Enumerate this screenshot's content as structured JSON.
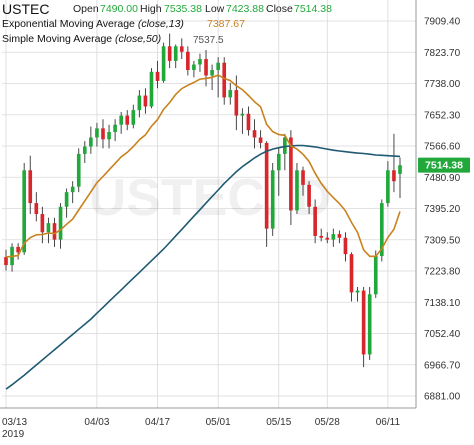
{
  "header": {
    "symbol": "USTEC",
    "open_label": "Open",
    "open_value": "7490.00",
    "high_label": "High",
    "high_value": "7535.38",
    "low_label": "Low",
    "low_value": "7423.88",
    "close_label": "Close",
    "close_value": "7514.38",
    "ema_label": "Exponential Moving Average",
    "ema_params": "(close,13)",
    "ema_value": "7387.67",
    "sma_label": "Simple Moving Average",
    "sma_params": "(close,50)"
  },
  "watermark": "USTEC, D",
  "last_price_label": "7514.38",
  "peak_label": "7537.5",
  "colors": {
    "up": "#22a83a",
    "down": "#d8262b",
    "ema": "#c8821e",
    "sma": "#1f5a73",
    "grid": "#d9d9d9",
    "price_tag": "#22a83a"
  },
  "chart_data": {
    "type": "candlestick",
    "ylim": [
      6830,
      7980
    ],
    "y_ticks": [
      "7909.40",
      "7823.70",
      "7738.00",
      "7652.30",
      "7566.60",
      "7480.90",
      "7395.20",
      "7309.50",
      "7223.80",
      "7138.10",
      "7052.40",
      "6966.70",
      "6881.00"
    ],
    "x_ticks": [
      {
        "label": "03/13",
        "sub": "2019",
        "index": 0
      },
      {
        "label": "04/03",
        "sub": "",
        "index": 15
      },
      {
        "label": "04/17",
        "sub": "",
        "index": 25
      },
      {
        "label": "05/01",
        "sub": "",
        "index": 35
      },
      {
        "label": "05/15",
        "sub": "",
        "index": 45
      },
      {
        "label": "05/28",
        "sub": "",
        "index": 53
      },
      {
        "label": "06/11",
        "sub": "",
        "index": 63
      }
    ],
    "candles": [
      {
        "o": 7262,
        "h": 7282,
        "l": 7225,
        "c": 7240
      },
      {
        "o": 7240,
        "h": 7300,
        "l": 7222,
        "c": 7290
      },
      {
        "o": 7290,
        "h": 7300,
        "l": 7255,
        "c": 7275
      },
      {
        "o": 7275,
        "h": 7520,
        "l": 7268,
        "c": 7500
      },
      {
        "o": 7500,
        "h": 7540,
        "l": 7380,
        "c": 7410
      },
      {
        "o": 7410,
        "h": 7440,
        "l": 7360,
        "c": 7380
      },
      {
        "o": 7380,
        "h": 7400,
        "l": 7300,
        "c": 7330
      },
      {
        "o": 7330,
        "h": 7370,
        "l": 7300,
        "c": 7355
      },
      {
        "o": 7355,
        "h": 7370,
        "l": 7290,
        "c": 7310
      },
      {
        "o": 7310,
        "h": 7410,
        "l": 7285,
        "c": 7400
      },
      {
        "o": 7400,
        "h": 7450,
        "l": 7370,
        "c": 7440
      },
      {
        "o": 7440,
        "h": 7470,
        "l": 7410,
        "c": 7455
      },
      {
        "o": 7455,
        "h": 7560,
        "l": 7440,
        "c": 7545
      },
      {
        "o": 7545,
        "h": 7580,
        "l": 7520,
        "c": 7565
      },
      {
        "o": 7565,
        "h": 7620,
        "l": 7545,
        "c": 7590
      },
      {
        "o": 7590,
        "h": 7630,
        "l": 7565,
        "c": 7615
      },
      {
        "o": 7615,
        "h": 7640,
        "l": 7560,
        "c": 7585
      },
      {
        "o": 7585,
        "h": 7625,
        "l": 7560,
        "c": 7605
      },
      {
        "o": 7605,
        "h": 7640,
        "l": 7580,
        "c": 7625
      },
      {
        "o": 7625,
        "h": 7660,
        "l": 7600,
        "c": 7650
      },
      {
        "o": 7650,
        "h": 7665,
        "l": 7610,
        "c": 7625
      },
      {
        "o": 7625,
        "h": 7680,
        "l": 7615,
        "c": 7665
      },
      {
        "o": 7665,
        "h": 7720,
        "l": 7645,
        "c": 7705
      },
      {
        "o": 7705,
        "h": 7725,
        "l": 7655,
        "c": 7675
      },
      {
        "o": 7675,
        "h": 7780,
        "l": 7670,
        "c": 7770
      },
      {
        "o": 7770,
        "h": 7800,
        "l": 7725,
        "c": 7745
      },
      {
        "o": 7745,
        "h": 7850,
        "l": 7740,
        "c": 7840
      },
      {
        "o": 7840,
        "h": 7875,
        "l": 7780,
        "c": 7800
      },
      {
        "o": 7800,
        "h": 7845,
        "l": 7780,
        "c": 7840
      },
      {
        "o": 7840,
        "h": 7862,
        "l": 7805,
        "c": 7825
      },
      {
        "o": 7825,
        "h": 7840,
        "l": 7760,
        "c": 7775
      },
      {
        "o": 7775,
        "h": 7800,
        "l": 7755,
        "c": 7790
      },
      {
        "o": 7790,
        "h": 7820,
        "l": 7770,
        "c": 7805
      },
      {
        "o": 7805,
        "h": 7830,
        "l": 7730,
        "c": 7760
      },
      {
        "o": 7760,
        "h": 7790,
        "l": 7720,
        "c": 7775
      },
      {
        "o": 7775,
        "h": 7810,
        "l": 7700,
        "c": 7795
      },
      {
        "o": 7795,
        "h": 7810,
        "l": 7680,
        "c": 7700
      },
      {
        "o": 7700,
        "h": 7740,
        "l": 7680,
        "c": 7720
      },
      {
        "o": 7720,
        "h": 7760,
        "l": 7610,
        "c": 7650
      },
      {
        "o": 7650,
        "h": 7670,
        "l": 7600,
        "c": 7655
      },
      {
        "o": 7655,
        "h": 7675,
        "l": 7595,
        "c": 7610
      },
      {
        "o": 7610,
        "h": 7640,
        "l": 7560,
        "c": 7590
      },
      {
        "o": 7590,
        "h": 7610,
        "l": 7560,
        "c": 7575
      },
      {
        "o": 7575,
        "h": 7580,
        "l": 7290,
        "c": 7340
      },
      {
        "o": 7340,
        "h": 7520,
        "l": 7320,
        "c": 7500
      },
      {
        "o": 7500,
        "h": 7560,
        "l": 7430,
        "c": 7545
      },
      {
        "o": 7545,
        "h": 7600,
        "l": 7500,
        "c": 7590
      },
      {
        "o": 7590,
        "h": 7610,
        "l": 7350,
        "c": 7390
      },
      {
        "o": 7390,
        "h": 7520,
        "l": 7380,
        "c": 7500
      },
      {
        "o": 7500,
        "h": 7510,
        "l": 7430,
        "c": 7460
      },
      {
        "o": 7460,
        "h": 7470,
        "l": 7380,
        "c": 7400
      },
      {
        "o": 7400,
        "h": 7420,
        "l": 7300,
        "c": 7320
      },
      {
        "o": 7320,
        "h": 7340,
        "l": 7305,
        "c": 7315
      },
      {
        "o": 7315,
        "h": 7330,
        "l": 7300,
        "c": 7310
      },
      {
        "o": 7310,
        "h": 7340,
        "l": 7290,
        "c": 7325
      },
      {
        "o": 7325,
        "h": 7335,
        "l": 7300,
        "c": 7315
      },
      {
        "o": 7315,
        "h": 7330,
        "l": 7250,
        "c": 7270
      },
      {
        "o": 7270,
        "h": 7275,
        "l": 7140,
        "c": 7165
      },
      {
        "o": 7165,
        "h": 7180,
        "l": 7140,
        "c": 7170
      },
      {
        "o": 7170,
        "h": 7180,
        "l": 6960,
        "c": 6995
      },
      {
        "o": 6995,
        "h": 7180,
        "l": 6980,
        "c": 7160
      },
      {
        "o": 7160,
        "h": 7280,
        "l": 7150,
        "c": 7265
      },
      {
        "o": 7265,
        "h": 7420,
        "l": 7250,
        "c": 7410
      },
      {
        "o": 7410,
        "h": 7525,
        "l": 7400,
        "c": 7500
      },
      {
        "o": 7500,
        "h": 7600,
        "l": 7440,
        "c": 7470
      },
      {
        "o": 7490,
        "h": 7535,
        "l": 7424,
        "c": 7514
      }
    ],
    "ema_13": [
      7262,
      7264,
      7266,
      7300,
      7315,
      7323,
      7324,
      7328,
      7326,
      7337,
      7352,
      7366,
      7391,
      7416,
      7441,
      7466,
      7483,
      7501,
      7519,
      7537,
      7549,
      7565,
      7584,
      7597,
      7621,
      7639,
      7667,
      7686,
      7708,
      7724,
      7733,
      7741,
      7750,
      7752,
      7755,
      7761,
      7752,
      7746,
      7732,
      7721,
      7705,
      7688,
      7674,
      7626,
      7606,
      7598,
      7596,
      7567,
      7558,
      7544,
      7524,
      7492,
      7464,
      7442,
      7425,
      7409,
      7389,
      7357,
      7329,
      7282,
      7264,
      7264,
      7285,
      7316,
      7338,
      7387
    ],
    "sma_50": [
      6900,
      6912,
      6925,
      6938,
      6952,
      6966,
      6980,
      6994,
      7008,
      7022,
      7036,
      7050,
      7064,
      7078,
      7092,
      7108,
      7124,
      7140,
      7156,
      7172,
      7188,
      7204,
      7220,
      7236,
      7252,
      7268,
      7284,
      7302,
      7320,
      7338,
      7356,
      7374,
      7392,
      7410,
      7428,
      7446,
      7464,
      7480,
      7496,
      7510,
      7522,
      7534,
      7544,
      7552,
      7558,
      7562,
      7565,
      7567,
      7568,
      7568,
      7566,
      7564,
      7561,
      7558,
      7555,
      7553,
      7551,
      7549,
      7547,
      7546,
      7544,
      7542,
      7541,
      7540,
      7539,
      7538
    ]
  }
}
